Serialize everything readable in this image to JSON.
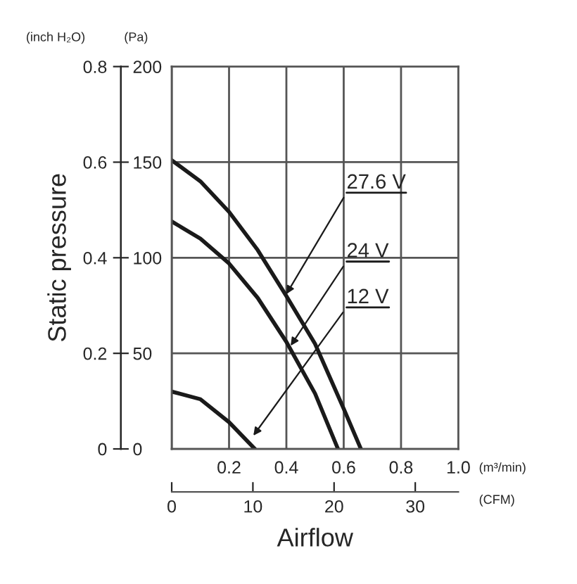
{
  "chart_data": {
    "type": "line",
    "x": [
      0,
      0.1,
      0.2,
      0.3,
      0.4,
      0.5,
      0.6,
      0.66
    ],
    "series": [
      {
        "color": "#1a1a1a",
        "axis": "y2",
        "values": [
          151,
          140,
          124,
          104,
          80,
          55,
          21,
          0
        ]
      },
      {
        "color": "#1a1a1a",
        "axis": "y2",
        "x": [
          0,
          0.1,
          0.2,
          0.3,
          0.4,
          0.5,
          0.58
        ],
        "values": [
          119,
          110,
          97,
          79,
          56,
          29,
          0
        ]
      },
      {
        "color": "#1a1a1a",
        "axis": "y2",
        "x": [
          0,
          0.1,
          0.2,
          0.29
        ],
        "values": [
          30,
          26,
          14,
          0
        ]
      }
    ],
    "xlabel": "Airflow",
    "ylabel": "Static pressure",
    "xlim": [
      0,
      1.0
    ],
    "xticks": [
      {
        "value": 0,
        "label": null
      },
      0.2,
      0.4,
      0.6,
      0.8,
      {
        "value": 1.0,
        "label": "1.0"
      }
    ],
    "ylim": [
      0,
      0.8
    ],
    "yticks": [
      0,
      0.2,
      0.4,
      0.6,
      0.8
    ],
    "y2lim": [
      0,
      200
    ],
    "y2ticks": [
      0,
      50,
      100,
      150,
      200
    ],
    "x2lim": [
      0,
      35.31
    ],
    "x2ticks": [
      0,
      10,
      20,
      30
    ],
    "grid": true,
    "marker": "none",
    "line_style": "solid",
    "annotations": [
      {
        "text": "27.6 V",
        "x": 0.4,
        "y": 0.324
      },
      {
        "text": "24 V",
        "x": 0.415,
        "y": 0.216
      },
      {
        "text": "12 V",
        "x": 0.285,
        "y": 0.028
      },
      "(inch H₂O)",
      "(Pa)",
      "(m³/min)",
      "(CFM)"
    ]
  }
}
